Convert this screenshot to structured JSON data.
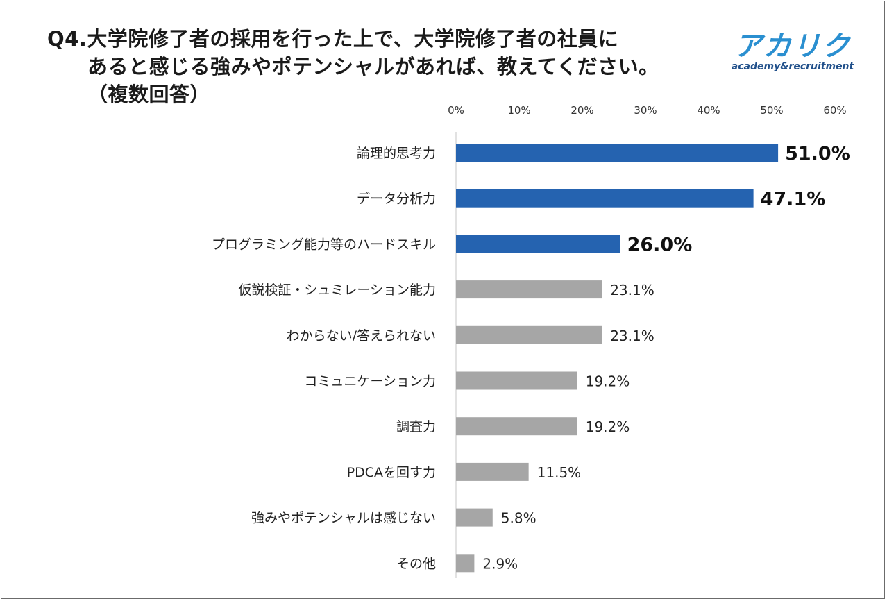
{
  "title": {
    "line1": "Q4.大学院修了者の採用を行った上で、大学院修了者の社員に",
    "line2": "あると感じる強みやポテンシャルがあれば、教えてください。",
    "line3": "（複数回答）"
  },
  "logo": {
    "main_text": "アカリク",
    "sub_text": "academy&recruitment",
    "color": "#2a8fd0"
  },
  "chart_data": {
    "type": "bar",
    "orientation": "horizontal",
    "title": "Q4.大学院修了者の採用を行った上で、大学院修了者の社員にあると感じる強みやポテンシャルがあれば、教えてください。（複数回答）",
    "xlabel": "",
    "ylabel": "",
    "xlim": [
      0,
      60
    ],
    "xticks": [
      "0%",
      "10%",
      "20%",
      "30%",
      "40%",
      "50%",
      "60%"
    ],
    "x_axis_position": "top",
    "grid": false,
    "categories": [
      "論理的思考力",
      "データ分析力",
      "プログラミング能力等のハードスキル",
      "仮説検証・シュミレーション能力",
      "わからない/答えられない",
      "コミュニケーション力",
      "調査力",
      "PDCAを回す力",
      "強みやポテンシャルは感じない",
      "その他"
    ],
    "values": [
      51.0,
      47.1,
      26.0,
      23.1,
      23.1,
      19.2,
      19.2,
      11.5,
      5.8,
      2.9
    ],
    "value_labels": [
      "51.0%",
      "47.1%",
      "26.0%",
      "23.1%",
      "23.1%",
      "19.2%",
      "19.2%",
      "11.5%",
      "5.8%",
      "2.9%"
    ],
    "highlighted_count": 3,
    "colors": {
      "highlight": "#2563b0",
      "normal": "#a6a6a6",
      "axis": "#d9d9d9"
    }
  }
}
